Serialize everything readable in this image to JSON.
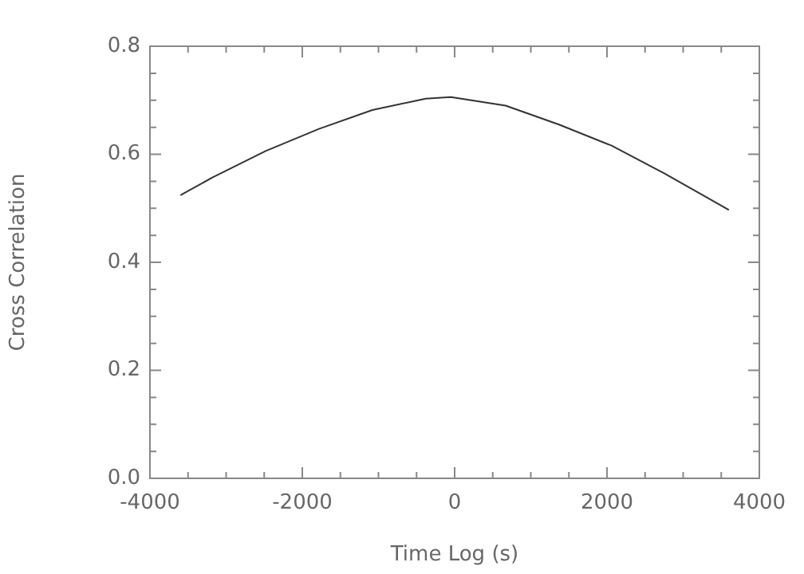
{
  "chart_data": {
    "type": "line",
    "xlabel": "Time Log (s)",
    "ylabel": "Cross Correlation",
    "x": [
      -3600,
      -3180,
      -2480,
      -1780,
      -1080,
      -380,
      -50,
      670,
      1370,
      2060,
      2760,
      3600
    ],
    "series": [
      {
        "color": "#333333",
        "values": [
          0.524,
          0.557,
          0.606,
          0.647,
          0.682,
          0.703,
          0.706,
          0.69,
          0.655,
          0.616,
          0.564,
          0.497
        ]
      }
    ],
    "xlim": [
      -4000,
      4000
    ],
    "xticks": [
      -4000,
      {
        "value": -3500,
        "label": null
      },
      {
        "value": -3000,
        "label": null
      },
      {
        "value": -2500,
        "label": null
      },
      -2000,
      {
        "value": -1500,
        "label": null
      },
      {
        "value": -1000,
        "label": null
      },
      {
        "value": -500,
        "label": null
      },
      0,
      {
        "value": 500,
        "label": null
      },
      {
        "value": 1000,
        "label": null
      },
      {
        "value": 1500,
        "label": null
      },
      2000,
      {
        "value": 2500,
        "label": null
      },
      {
        "value": 3000,
        "label": null
      },
      {
        "value": 3500,
        "label": null
      },
      4000
    ],
    "ylim": [
      0,
      0.8
    ],
    "yticks": [
      {
        "value": 0,
        "label": "0.0"
      },
      {
        "value": 0.05,
        "label": null
      },
      {
        "value": 0.1,
        "label": null
      },
      {
        "value": 0.15,
        "label": null
      },
      0.2,
      {
        "value": 0.25,
        "label": null
      },
      {
        "value": 0.3,
        "label": null
      },
      {
        "value": 0.35,
        "label": null
      },
      0.4,
      {
        "value": 0.45,
        "label": null
      },
      {
        "value": 0.5,
        "label": null
      },
      {
        "value": 0.55,
        "label": null
      },
      0.6,
      {
        "value": 0.65,
        "label": null
      },
      {
        "value": 0.7,
        "label": null
      },
      {
        "value": 0.75,
        "label": null
      },
      0.8
    ],
    "marker": "none",
    "line_style": "solid",
    "legend": false,
    "grid": false
  }
}
